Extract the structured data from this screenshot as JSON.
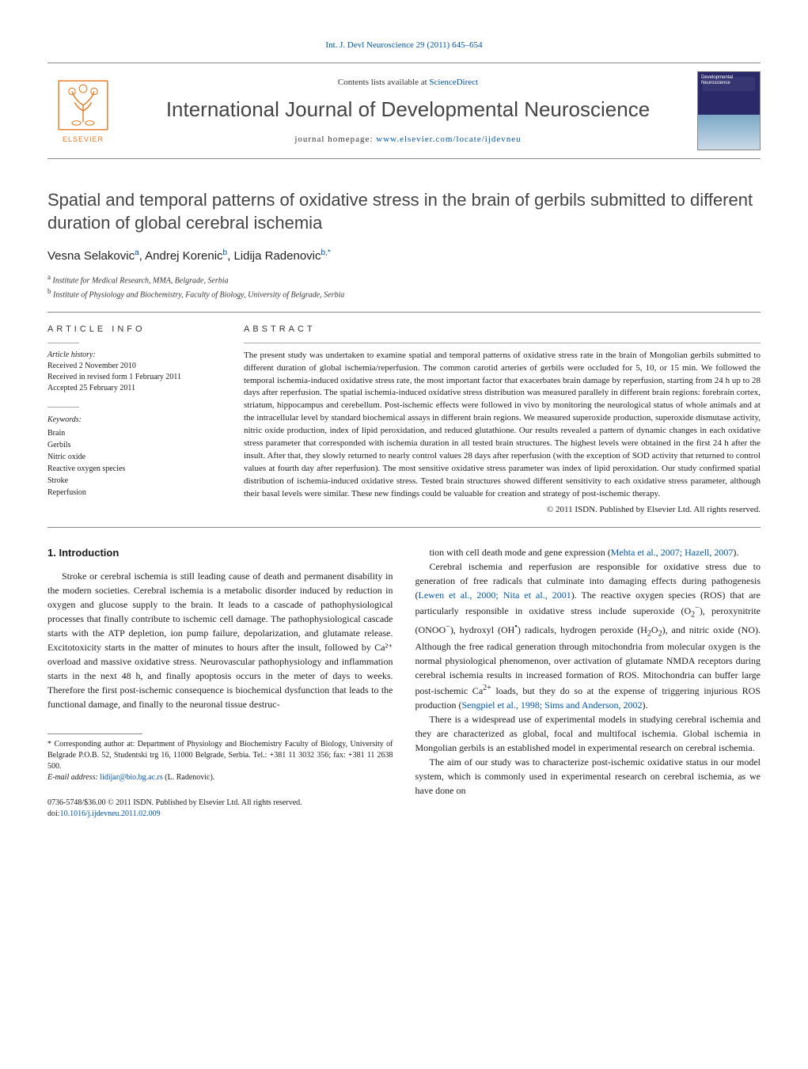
{
  "header": {
    "citation_prefix": "Int. J. Devl Neuroscience 29 (2011) 645–654",
    "contents_text": "Contents lists available at ",
    "contents_link": "ScienceDirect",
    "journal_title": "International Journal of Developmental Neuroscience",
    "homepage_label": "journal homepage: ",
    "homepage_url": "www.elsevier.com/locate/ijdevneu",
    "publisher_name": "ELSEVIER",
    "cover_caption": "Developmental Neuroscience"
  },
  "article": {
    "title": "Spatial and temporal patterns of oxidative stress in the brain of gerbils submitted to different duration of global cerebral ischemia",
    "authors_html": "Vesna Selakovic<sup>a</sup>, Andrej Korenic<sup>b</sup>, Lidija Radenovic<sup>b,*</sup>",
    "affiliations": [
      {
        "marker": "a",
        "text": "Institute for Medical Research, MMA, Belgrade, Serbia"
      },
      {
        "marker": "b",
        "text": "Institute of Physiology and Biochemistry, Faculty of Biology, University of Belgrade, Serbia"
      }
    ]
  },
  "info": {
    "article_info_label": "ARTICLE INFO",
    "abstract_label": "ABSTRACT",
    "history_label": "Article history:",
    "history": [
      "Received 2 November 2010",
      "Received in revised form 1 February 2011",
      "Accepted 25 February 2011"
    ],
    "keywords_label": "Keywords:",
    "keywords": [
      "Brain",
      "Gerbils",
      "Nitric oxide",
      "Reactive oxygen species",
      "Stroke",
      "Reperfusion"
    ]
  },
  "abstract": {
    "text": "The present study was undertaken to examine spatial and temporal patterns of oxidative stress rate in the brain of Mongolian gerbils submitted to different duration of global ischemia/reperfusion. The common carotid arteries of gerbils were occluded for 5, 10, or 15 min. We followed the temporal ischemia-induced oxidative stress rate, the most important factor that exacerbates brain damage by reperfusion, starting from 24 h up to 28 days after reperfusion. The spatial ischemia-induced oxidative stress distribution was measured parallely in different brain regions: forebrain cortex, striatum, hippocampus and cerebellum. Post-ischemic effects were followed in vivo by monitoring the neurological status of whole animals and at the intracellular level by standard biochemical assays in different brain regions. We measured superoxide production, superoxide dismutase activity, nitric oxide production, index of lipid peroxidation, and reduced glutathione. Our results revealed a pattern of dynamic changes in each oxidative stress parameter that corresponded with ischemia duration in all tested brain structures. The highest levels were obtained in the first 24 h after the insult. After that, they slowly returned to nearly control values 28 days after reperfusion (with the exception of SOD activity that returned to control values at fourth day after reperfusion). The most sensitive oxidative stress parameter was index of lipid peroxidation. Our study confirmed spatial distribution of ischemia-induced oxidative stress. Tested brain structures showed different sensitivity to each oxidative stress parameter, although their basal levels were similar. These new findings could be valuable for creation and strategy of post-ischemic therapy.",
    "copyright": "© 2011 ISDN. Published by Elsevier Ltd. All rights reserved."
  },
  "body": {
    "section_heading": "1. Introduction",
    "left_paragraphs": [
      "Stroke or cerebral ischemia is still leading cause of death and permanent disability in the modern societies. Cerebral ischemia is a metabolic disorder induced by reduction in oxygen and glucose supply to the brain. It leads to a cascade of pathophysiological processes that finally contribute to ischemic cell damage. The pathophysiological cascade starts with the ATP depletion, ion pump failure, depolarization, and glutamate release. Excitotoxicity starts in the matter of minutes to hours after the insult, followed by Ca²⁺ overload and massive oxidative stress. Neurovascular pathophysiology and inflammation starts in the next 48 h, and finally apoptosis occurs in the meter of days to weeks. Therefore the first post-ischemic consequence is biochemical dysfunction that leads to the functional damage, and finally to the neuronal tissue destruc-"
    ],
    "right_paragraphs": [
      {
        "text_before": "tion with cell death mode and gene expression (",
        "link": "Mehta et al., 2007; Hazell, 2007",
        "text_after": ")."
      },
      {
        "text_before": "Cerebral ischemia and reperfusion are responsible for oxidative stress due to generation of free radicals that culminate into damaging effects during pathogenesis (",
        "link": "Lewen et al., 2000; Nita et al., 2001",
        "text_after": "). The reactive oxygen species (ROS) that are particularly responsible in oxidative stress include superoxide (O₂⁻), peroxynitrite (ONOO⁻), hydroxyl (OH•) radicals, hydrogen peroxide (H₂O₂), and nitric oxide (NO). Although the free radical generation through mitochondria from molecular oxygen is the normal physiological phenomenon, over activation of glutamate NMDA receptors during cerebral ischemia results in increased formation of ROS. Mitochondria can buffer large post-ischemic Ca²⁺ loads, but they do so at the expense of triggering injurious ROS production (",
        "link2": "Sengpiel et al., 1998; Sims and Anderson, 2002",
        "text_after2": ")."
      },
      {
        "plain": "There is a widespread use of experimental models in studying cerebral ischemia and they are characterized as global, focal and multifocal ischemia. Global ischemia in Mongolian gerbils is an established model in experimental research on cerebral ischemia."
      },
      {
        "plain": "The aim of our study was to characterize post-ischemic oxidative status in our model system, which is commonly used in experimental research on cerebral ischemia, as we have done on"
      }
    ]
  },
  "footnotes": {
    "corresponding": "* Corresponding author at: Department of Physiology and Biochemistry Faculty of Biology, University of Belgrade P.O.B. 52, Studentski trg 16, 11000 Belgrade, Serbia. Tel.: +381 11 3032 356; fax: +381 11 2638 500.",
    "email_label": "E-mail address: ",
    "email": "lidijar@bio.bg.ac.rs",
    "email_suffix": " (L. Radenovic)."
  },
  "bottom": {
    "issn_line": "0736-5748/$36.00 © 2011 ISDN. Published by Elsevier Ltd. All rights reserved.",
    "doi_label": "doi:",
    "doi": "10.1016/j.ijdevneu.2011.02.009"
  },
  "colors": {
    "link": "#0055aa",
    "text": "#1a1a1a",
    "rule": "#888888",
    "elsevier": "#e67a22"
  }
}
